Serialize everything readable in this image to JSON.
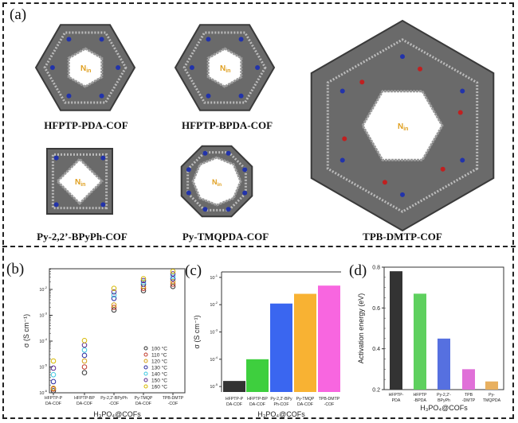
{
  "panels": {
    "a": "(a)",
    "b": "(b)",
    "c": "(c)",
    "d": "(d)"
  },
  "structures": [
    {
      "name": "HFPTP-PDA-COF",
      "pore": "N",
      "pore_sub": "in"
    },
    {
      "name": "HFPTP-BPDA-COF",
      "pore": "N",
      "pore_sub": "in"
    },
    {
      "name": "Py-2,2’-BPyPh-COF",
      "pore": "N",
      "pore_sub": "in"
    },
    {
      "name": "Py-TMQPDA-COF",
      "pore": "N",
      "pore_sub": "in"
    },
    {
      "name": "TPB-DMTP-COF",
      "pore": "N",
      "pore_sub": "in"
    }
  ],
  "colors": {
    "pore_label": "#e0a020",
    "framework": "#555555",
    "nitrogen": "#2233aa",
    "oxygen": "#c02020"
  },
  "chart_data": [
    {
      "id": "b",
      "type": "scatter",
      "xlabel": "H₃PO₄@COFs",
      "ylabel": "σ (S cm⁻¹)",
      "yscale": "log",
      "ylim_exp": [
        -6,
        -1.2
      ],
      "yticks": [
        {
          "base": "10",
          "exp": "-6"
        },
        {
          "base": "10",
          "exp": "-5"
        },
        {
          "base": "10",
          "exp": "-4"
        },
        {
          "base": "10",
          "exp": "-3"
        },
        {
          "base": "10",
          "exp": "-2"
        }
      ],
      "categories": [
        [
          "HFPTP-P",
          "DA-COF"
        ],
        [
          "HFPTP-BP",
          "DA-COF"
        ],
        [
          "Py-2,2'-BPyPh",
          "-COF"
        ],
        [
          "Py-TMQP",
          "DA-COF"
        ],
        [
          "TPB-DMTP",
          "-COF"
        ]
      ],
      "legend_position": "bottom-right",
      "series": [
        {
          "name": "100 °C",
          "color": "#333333",
          "values": [
            1.2e-06,
            6e-06,
            0.0016,
            0.009,
            0.013
          ]
        },
        {
          "name": "110 °C",
          "color": "#c0392b",
          "values": [
            1.4e-06,
            1e-05,
            0.002,
            0.011,
            0.016
          ]
        },
        {
          "name": "120 °C",
          "color": "#d4a017",
          "values": [
            1.5e-06,
            1.7e-05,
            0.0025,
            0.013,
            0.02
          ]
        },
        {
          "name": "130 °C",
          "color": "#2a2aa0",
          "values": [
            2.7e-06,
            2.8e-05,
            0.0045,
            0.016,
            0.026
          ]
        },
        {
          "name": "140 °C",
          "color": "#3cc8e0",
          "values": [
            5e-06,
            4.5e-05,
            0.006,
            0.019,
            0.032
          ]
        },
        {
          "name": "150 °C",
          "color": "#5a2a90",
          "values": [
            9e-06,
            7e-05,
            0.008,
            0.022,
            0.04
          ]
        },
        {
          "name": "160 °C",
          "color": "#d6b800",
          "values": [
            1.7e-05,
            0.000105,
            0.011,
            0.026,
            0.05
          ]
        }
      ]
    },
    {
      "id": "c",
      "type": "bar",
      "xlabel": "H₃PO₄@COFs",
      "ylabel": "σ (S cm⁻¹)",
      "yscale": "log",
      "ylim_exp": [
        -5.2,
        -0.8
      ],
      "yticks": [
        {
          "base": "10",
          "exp": "-5"
        },
        {
          "base": "10",
          "exp": "-4"
        },
        {
          "base": "10",
          "exp": "-3"
        },
        {
          "base": "10",
          "exp": "-2"
        },
        {
          "base": "10",
          "exp": "-1"
        }
      ],
      "categories": [
        [
          "HFPTP-P",
          "DA-COF"
        ],
        [
          "HFPTP-BP",
          "DA-COF"
        ],
        [
          "Py-2,2'-BPy",
          "Ph-COF"
        ],
        [
          "Py-TMQP",
          "DA-COF"
        ],
        [
          "TPB-DMTP",
          "-COF"
        ]
      ],
      "values": [
        1.6e-05,
        0.0001,
        0.011,
        0.025,
        0.05
      ],
      "colors": [
        "#333333",
        "#3ecf3e",
        "#3a66f0",
        "#f8b233",
        "#f866e0"
      ]
    },
    {
      "id": "d",
      "type": "bar",
      "xlabel": "H₃PO₄@COFs",
      "ylabel": "Activation energy (eV)",
      "ylim": [
        0.2,
        0.8
      ],
      "yticks": [
        "0.2",
        "0.4",
        "0.6",
        "0.8"
      ],
      "categories": [
        [
          "HFPTP-",
          "PDA"
        ],
        [
          "HFPTP",
          "-BPDA"
        ],
        [
          "Py-2,2'-",
          "BPyPh"
        ],
        [
          "TPB",
          "-DMTP"
        ],
        [
          "Py-",
          "TMQPDA"
        ]
      ],
      "values": [
        0.78,
        0.67,
        0.45,
        0.3,
        0.24
      ],
      "colors": [
        "#333333",
        "#5ed05e",
        "#5670e0",
        "#e070d8",
        "#e8b060"
      ]
    }
  ]
}
